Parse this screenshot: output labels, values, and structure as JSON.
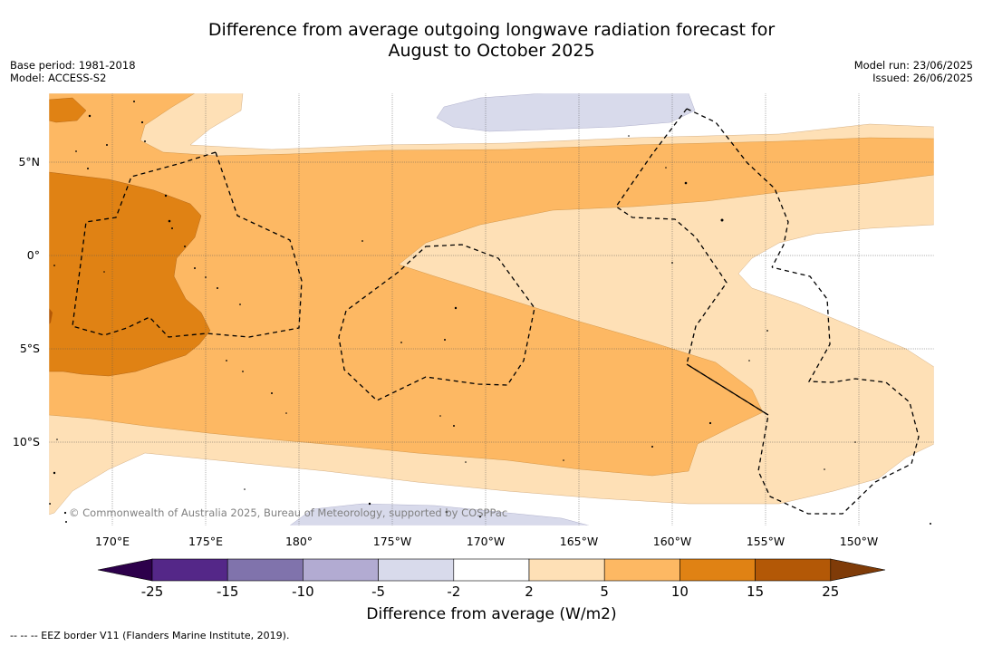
{
  "title_line1": "Difference from average outgoing longwave radiation forecast for",
  "title_line2": "August to October 2025",
  "base_period": "Base period: 1981-2018",
  "model": "Model: ACCESS-S2",
  "model_run": "Model run: 23/06/2025",
  "issued": "Issued: 26/06/2025",
  "lat_labels": [
    "5°N",
    "0°",
    "5°S",
    "10°S"
  ],
  "lon_labels": [
    "170°E",
    "175°E",
    "180°",
    "175°W",
    "170°W",
    "165°W",
    "160°W",
    "155°W",
    "150°W"
  ],
  "copyright": "© Commonwealth of Australia 2025, Bureau of Meteorology, supported by COSPPac",
  "colorbar": {
    "title": "Difference from average (W/m2)",
    "ticks": [
      "-25",
      "-15",
      "-10",
      "-5",
      "-2",
      "2",
      "5",
      "10",
      "15",
      "25"
    ],
    "colors": {
      "below_min": "#2d004b",
      "bins": [
        "#542788",
        "#8073ac",
        "#b2abd2",
        "#d8daeb",
        "#ffffff",
        "#fee0b6",
        "#fdb863",
        "#e08214",
        "#b35806"
      ],
      "above_max": "#7f3b08"
    }
  },
  "eez_note": "--  --  -- EEZ border V11 (Flanders Marine Institute, 2019)."
}
